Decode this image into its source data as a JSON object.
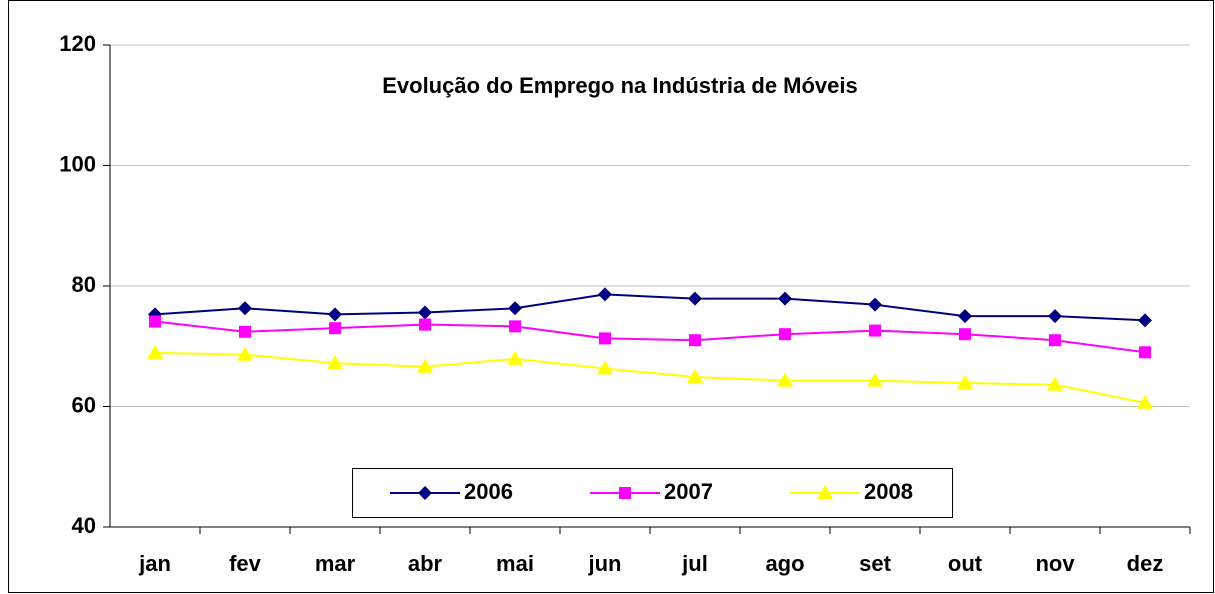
{
  "chart_data": {
    "type": "line",
    "title": "Evolução do Emprego na Indústria de Móveis",
    "categories": [
      "jan",
      "fev",
      "mar",
      "abr",
      "mai",
      "jun",
      "jul",
      "ago",
      "set",
      "out",
      "nov",
      "dez"
    ],
    "series": [
      {
        "name": "2006",
        "color": "#000080",
        "marker": "diamond",
        "values": [
          75.3,
          76.3,
          75.3,
          75.6,
          76.3,
          78.6,
          77.9,
          77.9,
          76.9,
          75.0,
          75.0,
          74.3
        ]
      },
      {
        "name": "2007",
        "color": "#ff00ff",
        "marker": "square",
        "values": [
          74.1,
          72.4,
          73.0,
          73.6,
          73.3,
          71.3,
          71.0,
          72.0,
          72.6,
          72.0,
          71.0,
          69.0
        ]
      },
      {
        "name": "2008",
        "color": "#ffff00",
        "marker": "triangle",
        "values": [
          68.9,
          68.6,
          67.2,
          66.6,
          67.9,
          66.3,
          64.9,
          64.3,
          64.3,
          63.9,
          63.6,
          60.6
        ]
      }
    ],
    "ylim": [
      40,
      120
    ],
    "yticks": [
      40,
      60,
      80,
      100,
      120
    ],
    "grid": true,
    "legend": "bottom"
  }
}
